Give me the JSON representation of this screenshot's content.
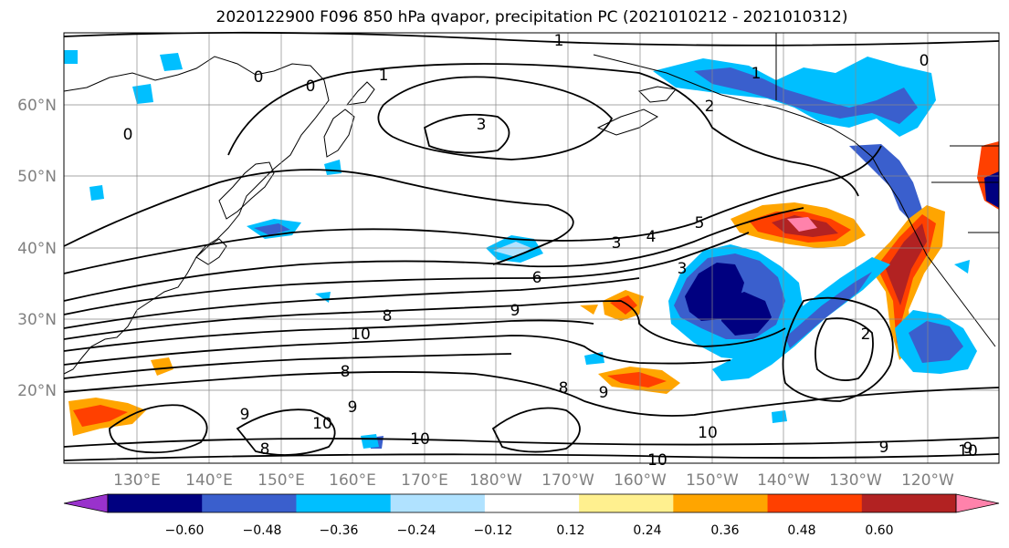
{
  "title": "2020122900 F096 850 hPa qvapor, precipitation PC (2021010212 - 2021010312)",
  "lat_ticks": [
    "60°N",
    "50°N",
    "40°N",
    "30°N",
    "20°N"
  ],
  "lon_ticks": [
    "130°E",
    "140°E",
    "150°E",
    "160°E",
    "170°E",
    "180°W",
    "170°W",
    "160°W",
    "150°W",
    "140°W",
    "130°W",
    "120°W"
  ],
  "colorbar": {
    "ticks": [
      "−0.60",
      "−0.48",
      "−0.36",
      "−0.24",
      "−0.12",
      "0.12",
      "0.24",
      "0.36",
      "0.48",
      "0.60"
    ],
    "colors": [
      "#9932cc",
      "#000080",
      "#3a5fcd",
      "#00bfff",
      "#b0e2ff",
      "#ffffff",
      "#fff08f",
      "#ffa500",
      "#ff4000",
      "#b22222",
      "#ff82ab"
    ]
  },
  "contour_labels": [
    "1",
    "0",
    "1",
    "3",
    "0",
    "1",
    "2",
    "0",
    "0",
    "3",
    "4",
    "5",
    "6",
    "8",
    "9",
    "10",
    "3",
    "8",
    "9",
    "10",
    "9",
    "8",
    "10",
    "8",
    "9",
    "10",
    "9",
    "2",
    "10",
    "9",
    "10"
  ]
}
